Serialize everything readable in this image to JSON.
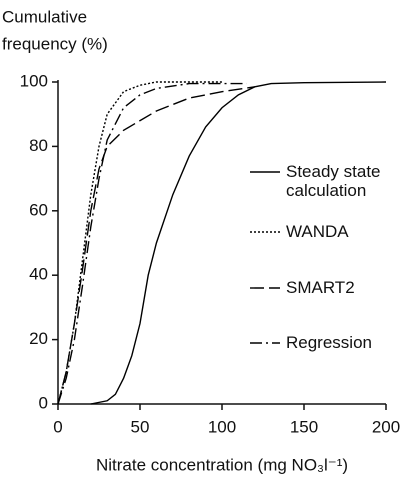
{
  "chart_data": {
    "type": "line",
    "ylabel": [
      "Cumulative",
      "frequency (%)"
    ],
    "xlabel": "Nitrate concentration (mg NO₃l⁻¹)",
    "xlim": [
      0,
      200
    ],
    "xticks": [
      0,
      50,
      100,
      150,
      200
    ],
    "ylim": [
      0,
      100
    ],
    "yticks": [
      0,
      20,
      40,
      60,
      80,
      100
    ],
    "series": [
      {
        "name": "Steady state calculation",
        "color": "#000000",
        "dash": "solid",
        "x": [
          20,
          30,
          35,
          40,
          45,
          50,
          55,
          60,
          70,
          80,
          90,
          100,
          110,
          120,
          130,
          150,
          200
        ],
        "values": [
          0,
          1,
          3,
          8,
          15,
          25,
          40,
          50,
          65,
          77,
          86,
          92,
          96,
          98.5,
          99.5,
          99.8,
          100
        ]
      },
      {
        "name": "WANDA",
        "color": "#000000",
        "dash": "dotted",
        "x": [
          0,
          5,
          10,
          15,
          20,
          25,
          30,
          40,
          50,
          60,
          100
        ],
        "values": [
          0,
          10,
          25,
          45,
          65,
          80,
          90,
          97,
          99,
          100,
          100
        ]
      },
      {
        "name": "SMART2",
        "color": "#000000",
        "dash": "dashed",
        "x": [
          0,
          5,
          10,
          15,
          20,
          25,
          30,
          40,
          50,
          60,
          80,
          100,
          120
        ],
        "values": [
          0,
          10,
          25,
          42,
          60,
          73,
          80,
          85,
          88,
          91,
          95,
          97,
          98.5
        ]
      },
      {
        "name": "Regression",
        "color": "#000000",
        "dash": "dashdot",
        "x": [
          0,
          5,
          10,
          15,
          20,
          25,
          30,
          40,
          50,
          60,
          80,
          115
        ],
        "values": [
          0,
          8,
          20,
          37,
          55,
          70,
          82,
          92,
          96,
          98,
          99.5,
          99.5
        ]
      }
    ]
  }
}
